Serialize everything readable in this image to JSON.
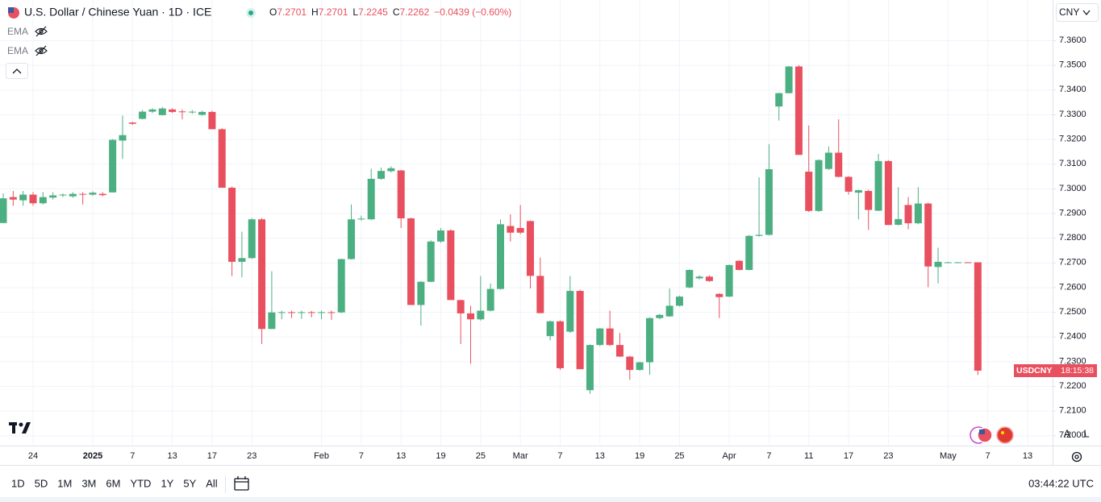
{
  "header": {
    "title": "U.S. Dollar / Chinese Yuan · 1D · ICE",
    "ohlc": [
      {
        "label": "O",
        "value": "7.2701"
      },
      {
        "label": "H",
        "value": "7.2701"
      },
      {
        "label": "L",
        "value": "7.2245"
      },
      {
        "label": "C",
        "value": "7.2262"
      }
    ],
    "change": "−0.0439 (−0.60%)",
    "indicators": [
      "EMA",
      "EMA"
    ],
    "currency": "CNY"
  },
  "chart_data": {
    "type": "candlestick",
    "up_color": "#4caf82",
    "down_color": "#e9505f",
    "grid": true,
    "categories": [
      null,
      null,
      null,
      "24",
      null,
      null,
      null,
      null,
      null,
      "2025",
      null,
      null,
      null,
      "7",
      null,
      null,
      null,
      "13",
      null,
      null,
      null,
      "17",
      null,
      null,
      null,
      "23",
      null,
      null,
      null,
      null,
      null,
      null,
      "Feb",
      null,
      null,
      null,
      "7",
      null,
      null,
      null,
      "13",
      null,
      null,
      null,
      "19",
      null,
      null,
      null,
      "25",
      null,
      null,
      null,
      "Mar",
      null,
      null,
      null,
      "7",
      null,
      null,
      null,
      "13",
      null,
      null,
      null,
      "19",
      null,
      null,
      null,
      "25",
      null,
      null,
      null,
      null,
      "Apr",
      null,
      null,
      null,
      "7",
      null,
      null,
      null,
      "11",
      null,
      null,
      null,
      "17",
      null,
      null,
      null,
      "23",
      null,
      null,
      null,
      null,
      null,
      "May",
      null,
      null,
      null,
      "7",
      null,
      null,
      null,
      "13"
    ],
    "open": [
      7.286,
      7.2965,
      7.2952,
      7.2975,
      7.294,
      7.2963,
      7.2972,
      7.2968,
      7.2978,
      7.2975,
      7.2978,
      7.2984,
      7.3194,
      7.3267,
      7.3282,
      7.3311,
      7.3297,
      7.332,
      7.3312,
      7.331,
      7.3298,
      7.331,
      7.324,
      7.3003,
      7.2703,
      7.2718,
      7.2875,
      7.2431,
      7.2498,
      7.2499,
      7.2498,
      7.2499,
      7.2498,
      7.2499,
      7.2498,
      7.2714,
      7.2876,
      7.2875,
      7.3039,
      7.307,
      7.3073,
      7.2879,
      7.2528,
      7.2622,
      7.2785,
      7.283,
      7.2548,
      7.2494,
      7.247,
      7.2505,
      7.2593,
      7.2848,
      7.284,
      7.2868,
      7.2646,
      7.2402,
      7.2462,
      7.242,
      7.2585,
      7.2183,
      7.2366,
      7.2433,
      7.2366,
      7.2319,
      7.2265,
      7.2296,
      7.2475,
      7.2482,
      7.2525,
      7.2599,
      7.2636,
      7.2643,
      7.2573,
      7.2562,
      7.2707,
      7.267,
      7.2808,
      7.2812,
      7.3332,
      7.3386,
      7.3494,
      7.3068,
      7.2909,
      7.3079,
      7.3145,
      7.3047,
      7.2983,
      7.299,
      7.291,
      7.3111,
      7.2853,
      7.2933,
      7.2859,
      7.2939,
      7.2682,
      7.2701,
      7.2701,
      7.2701,
      7.2701,
      null,
      null,
      null,
      null,
      null
    ],
    "high": [
      7.298,
      7.299,
      7.299,
      7.2985,
      7.2985,
      7.2985,
      7.298,
      7.2985,
      7.2985,
      7.2988,
      7.2985,
      7.32,
      7.3295,
      7.327,
      7.3318,
      7.3325,
      7.333,
      7.3325,
      7.332,
      7.3318,
      7.3315,
      7.3315,
      7.3245,
      7.3008,
      7.2825,
      7.288,
      7.288,
      7.2665,
      7.2505,
      7.2505,
      7.2505,
      7.2504,
      7.2505,
      7.2505,
      7.2716,
      7.2935,
      7.289,
      7.308,
      7.3085,
      7.309,
      7.3075,
      7.2882,
      7.2625,
      7.279,
      7.284,
      7.2835,
      7.255,
      7.2525,
      7.2645,
      7.2615,
      7.2875,
      7.2895,
      7.2933,
      7.287,
      7.272,
      7.2465,
      7.2465,
      7.2645,
      7.259,
      7.2368,
      7.2435,
      7.2505,
      7.2415,
      7.2322,
      7.2298,
      7.2478,
      7.2492,
      7.2595,
      7.2566,
      7.2672,
      7.2648,
      7.2648,
      7.2576,
      7.2692,
      7.271,
      7.2812,
      7.3045,
      7.318,
      7.3388,
      7.3496,
      7.35,
      7.3255,
      7.3118,
      7.317,
      7.328,
      7.305,
      7.2995,
      7.2995,
      7.314,
      7.3115,
      7.3005,
      7.2965,
      7.3005,
      7.2942,
      7.276,
      7.2703,
      7.2702,
      7.2702,
      7.2701,
      null,
      null,
      null,
      null,
      null
    ],
    "low": [
      7.286,
      7.293,
      7.293,
      7.293,
      7.2935,
      7.2955,
      7.2965,
      7.2962,
      7.2935,
      7.297,
      7.2968,
      7.2984,
      7.312,
      7.3258,
      7.328,
      7.3305,
      7.3295,
      7.3305,
      7.328,
      7.3302,
      7.3295,
      7.324,
      7.3003,
      7.2645,
      7.264,
      7.2715,
      7.237,
      7.243,
      7.247,
      7.2475,
      7.2472,
      7.2478,
      7.247,
      7.2468,
      7.2495,
      7.2712,
      7.287,
      7.2872,
      7.3035,
      7.3065,
      7.284,
      7.2528,
      7.2445,
      7.262,
      7.278,
      7.2548,
      7.237,
      7.229,
      7.2465,
      7.2502,
      7.259,
      7.2785,
      7.2815,
      7.2595,
      7.2495,
      7.2385,
      7.2265,
      7.2415,
      7.2268,
      7.2168,
      7.2362,
      7.2362,
      7.2318,
      7.2225,
      7.2262,
      7.2245,
      7.247,
      7.248,
      7.2522,
      7.2596,
      7.2632,
      7.2622,
      7.2475,
      7.256,
      7.2668,
      7.2668,
      7.2805,
      7.281,
      7.3275,
      7.3385,
      7.3136,
      7.2905,
      7.2905,
      7.3075,
      7.3045,
      7.2975,
      7.2875,
      7.2832,
      7.2908,
      7.2852,
      7.285,
      7.2835,
      7.2855,
      7.26,
      7.2615,
      7.2699,
      7.27,
      7.2699,
      7.2245,
      null,
      null,
      null,
      null,
      null
    ],
    "close": [
      7.296,
      7.2955,
      7.2975,
      7.294,
      7.2965,
      7.2972,
      7.2975,
      7.2978,
      7.2976,
      7.2983,
      7.2973,
      7.3197,
      7.3216,
      7.3262,
      7.3311,
      7.332,
      7.3324,
      7.331,
      7.331,
      7.3311,
      7.331,
      7.324,
      7.3003,
      7.2703,
      7.2718,
      7.2875,
      7.2431,
      7.2498,
      7.2499,
      7.2498,
      7.2499,
      7.2498,
      7.2499,
      7.2498,
      7.2714,
      7.2875,
      7.2878,
      7.3039,
      7.3071,
      7.3082,
      7.2879,
      7.2528,
      7.2622,
      7.2785,
      7.283,
      7.2548,
      7.2494,
      7.247,
      7.2505,
      7.2593,
      7.2855,
      7.2821,
      7.2821,
      7.2646,
      7.2495,
      7.2462,
      7.2272,
      7.2585,
      7.2268,
      7.2366,
      7.2433,
      7.2366,
      7.2319,
      7.2265,
      7.2296,
      7.2475,
      7.2488,
      7.2525,
      7.2562,
      7.267,
      7.2643,
      7.2625,
      7.256,
      7.269,
      7.267,
      7.2808,
      7.2812,
      7.3078,
      7.3386,
      7.3494,
      7.3136,
      7.2909,
      7.3115,
      7.3145,
      7.3047,
      7.2987,
      7.2993,
      7.2913,
      7.3111,
      7.2852,
      7.2876,
      7.2859,
      7.2939,
      7.2684,
      7.2703,
      7.2701,
      7.2701,
      7.27,
      7.2262,
      null,
      null,
      null,
      null,
      null
    ],
    "ylim": [
      7.19586,
      7.37633
    ],
    "yticks": [
      {
        "value": 7.2,
        "label": "7.2000"
      },
      {
        "value": 7.21,
        "label": "7.2100"
      },
      {
        "value": 7.22,
        "label": "7.2200"
      },
      {
        "value": 7.23,
        "label": "7.2300"
      },
      {
        "value": 7.24,
        "label": "7.2400"
      },
      {
        "value": 7.25,
        "label": "7.2500"
      },
      {
        "value": 7.26,
        "label": "7.2600"
      },
      {
        "value": 7.27,
        "label": "7.2700"
      },
      {
        "value": 7.28,
        "label": "7.2800"
      },
      {
        "value": 7.29,
        "label": "7.2900"
      },
      {
        "value": 7.3,
        "label": "7.3000"
      },
      {
        "value": 7.31,
        "label": "7.3100"
      },
      {
        "value": 7.32,
        "label": "7.3200"
      },
      {
        "value": 7.33,
        "label": "7.3300"
      },
      {
        "value": 7.34,
        "label": "7.3400"
      },
      {
        "value": 7.35,
        "label": "7.3500"
      },
      {
        "value": 7.36,
        "label": "7.3600"
      }
    ],
    "price_label": {
      "symbol": "USDCNY",
      "countdown": "18:15:38"
    }
  },
  "toolbar": {
    "ranges": [
      "1D",
      "5D",
      "1M",
      "3M",
      "6M",
      "YTD",
      "1Y",
      "5Y",
      "All"
    ],
    "time": "03:44:22 UTC",
    "scale_buttons": [
      "A",
      "L"
    ]
  }
}
